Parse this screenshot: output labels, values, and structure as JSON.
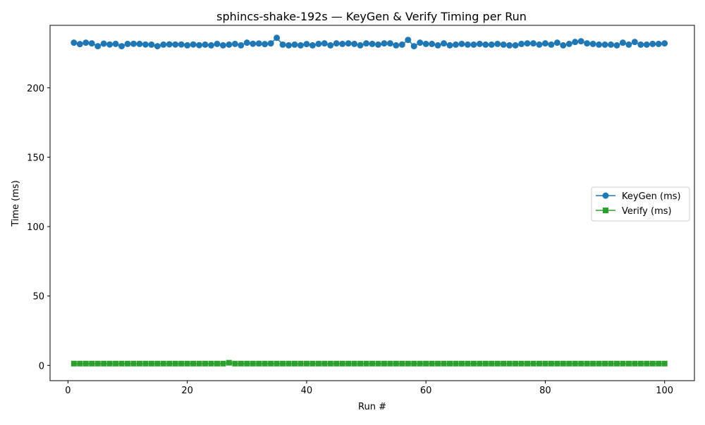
{
  "chart_data": {
    "type": "line",
    "title": "sphincs-shake-192s — KeyGen & Verify Timing per Run",
    "xlabel": "Run #",
    "ylabel": "Time (ms)",
    "xlim": [
      -3,
      105
    ],
    "ylim": [
      -11,
      245
    ],
    "xticks": [
      0,
      20,
      40,
      60,
      80,
      100
    ],
    "yticks": [
      0,
      50,
      100,
      150,
      200
    ],
    "grid": false,
    "legend_position": "center-right",
    "series": [
      {
        "name": "KeyGen (ms)",
        "color": "#1f77b4",
        "marker": "circle",
        "x": [
          1,
          2,
          3,
          4,
          5,
          6,
          7,
          8,
          9,
          10,
          11,
          12,
          13,
          14,
          15,
          16,
          17,
          18,
          19,
          20,
          21,
          22,
          23,
          24,
          25,
          26,
          27,
          28,
          29,
          30,
          31,
          32,
          33,
          34,
          35,
          36,
          37,
          38,
          39,
          40,
          41,
          42,
          43,
          44,
          45,
          46,
          47,
          48,
          49,
          50,
          51,
          52,
          53,
          54,
          55,
          56,
          57,
          58,
          59,
          60,
          61,
          62,
          63,
          64,
          65,
          66,
          67,
          68,
          69,
          70,
          71,
          72,
          73,
          74,
          75,
          76,
          77,
          78,
          79,
          80,
          81,
          82,
          83,
          84,
          85,
          86,
          87,
          88,
          89,
          90,
          91,
          92,
          93,
          94,
          95,
          96,
          97,
          98,
          99,
          100
        ],
        "values": [
          232.5,
          231.5,
          232.5,
          232.0,
          230.0,
          231.8,
          231.2,
          231.6,
          230.0,
          231.6,
          231.7,
          231.6,
          231.2,
          231.1,
          230.0,
          231.1,
          231.3,
          231.2,
          231.2,
          230.6,
          231.2,
          230.7,
          231.1,
          230.6,
          231.6,
          230.6,
          231.1,
          231.6,
          230.6,
          232.5,
          231.7,
          231.9,
          231.5,
          232.0,
          236.0,
          231.1,
          230.6,
          231.1,
          230.6,
          231.5,
          230.6,
          231.6,
          232.0,
          230.6,
          232.0,
          231.6,
          232.0,
          231.6,
          230.6,
          232.0,
          231.6,
          231.1,
          232.0,
          232.0,
          230.6,
          231.1,
          234.5,
          230.0,
          232.5,
          231.6,
          231.6,
          230.6,
          232.0,
          230.6,
          231.1,
          231.6,
          231.1,
          231.1,
          231.6,
          231.1,
          231.1,
          231.6,
          231.1,
          230.6,
          230.6,
          231.6,
          232.0,
          232.0,
          231.1,
          232.0,
          231.1,
          232.5,
          230.6,
          231.6,
          233.0,
          233.5,
          232.0,
          231.6,
          231.1,
          231.1,
          231.1,
          230.6,
          232.5,
          231.1,
          233.0,
          231.1,
          231.1,
          231.6,
          231.6,
          232.0
        ]
      },
      {
        "name": "Verify (ms)",
        "color": "#2ca02c",
        "marker": "square",
        "x": [
          1,
          2,
          3,
          4,
          5,
          6,
          7,
          8,
          9,
          10,
          11,
          12,
          13,
          14,
          15,
          16,
          17,
          18,
          19,
          20,
          21,
          22,
          23,
          24,
          25,
          26,
          27,
          28,
          29,
          30,
          31,
          32,
          33,
          34,
          35,
          36,
          37,
          38,
          39,
          40,
          41,
          42,
          43,
          44,
          45,
          46,
          47,
          48,
          49,
          50,
          51,
          52,
          53,
          54,
          55,
          56,
          57,
          58,
          59,
          60,
          61,
          62,
          63,
          64,
          65,
          66,
          67,
          68,
          69,
          70,
          71,
          72,
          73,
          74,
          75,
          76,
          77,
          78,
          79,
          80,
          81,
          82,
          83,
          84,
          85,
          86,
          87,
          88,
          89,
          90,
          91,
          92,
          93,
          94,
          95,
          96,
          97,
          98,
          99,
          100
        ],
        "values": [
          1.3,
          1.3,
          1.3,
          1.3,
          1.3,
          1.3,
          1.3,
          1.3,
          1.3,
          1.3,
          1.3,
          1.3,
          1.3,
          1.3,
          1.3,
          1.3,
          1.3,
          1.3,
          1.3,
          1.3,
          1.3,
          1.3,
          1.3,
          1.3,
          1.3,
          1.3,
          1.9,
          1.3,
          1.3,
          1.3,
          1.3,
          1.3,
          1.3,
          1.3,
          1.3,
          1.3,
          1.3,
          1.3,
          1.3,
          1.3,
          1.3,
          1.3,
          1.3,
          1.3,
          1.3,
          1.3,
          1.3,
          1.3,
          1.3,
          1.3,
          1.3,
          1.3,
          1.3,
          1.3,
          1.3,
          1.3,
          1.3,
          1.3,
          1.3,
          1.3,
          1.3,
          1.3,
          1.3,
          1.3,
          1.3,
          1.3,
          1.3,
          1.3,
          1.3,
          1.3,
          1.3,
          1.3,
          1.3,
          1.3,
          1.3,
          1.3,
          1.3,
          1.3,
          1.3,
          1.3,
          1.3,
          1.3,
          1.3,
          1.3,
          1.3,
          1.3,
          1.3,
          1.3,
          1.3,
          1.3,
          1.3,
          1.3,
          1.3,
          1.3,
          1.3,
          1.3,
          1.3,
          1.3,
          1.3,
          1.3
        ]
      }
    ]
  }
}
